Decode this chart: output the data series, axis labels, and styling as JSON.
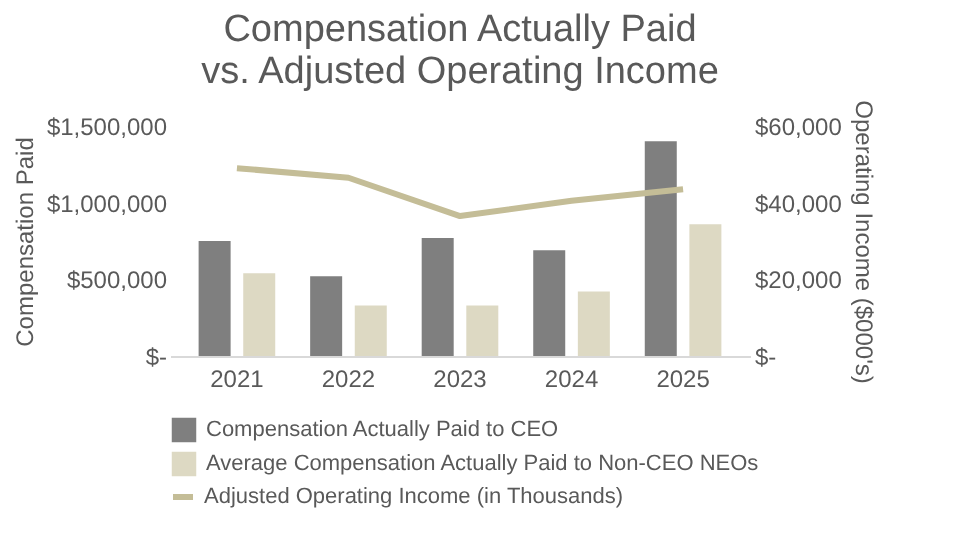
{
  "chart_data": {
    "type": "bar",
    "title": "Compensation Actually Paid vs. Adjusted Operating Income",
    "ylabel": "Compensation Paid",
    "y2label": "Operating Income ($000's)",
    "categories": [
      "2021",
      "2022",
      "2023",
      "2024",
      "2025"
    ],
    "series": [
      {
        "name": "Compensation Actually Paid to CEO",
        "color": "#7f7f7f",
        "values": [
          750000,
          520000,
          770000,
          690000,
          1400000
        ]
      },
      {
        "name": "Average Compensation Actually Paid to Non-CEO NEOs",
        "color": "#ddd9c3",
        "values": [
          540000,
          330000,
          330000,
          420000,
          860000
        ]
      },
      {
        "name": "Adjusted Operating Income (in Thousands)",
        "type": "line",
        "axis": "y2",
        "color": "#c4bd97",
        "values": [
          49000,
          46500,
          36500,
          40500,
          43500
        ]
      }
    ],
    "ylim": [
      0,
      1500000
    ],
    "yticks": [
      {
        "value": 0,
        "label": "$-"
      },
      {
        "value": 500000,
        "label": "$500,000"
      },
      {
        "value": 1000000,
        "label": "$1,000,000"
      },
      {
        "value": 1500000,
        "label": "$1,500,000"
      }
    ],
    "y2lim": [
      0,
      60000
    ],
    "y2ticks": [
      {
        "value": 0,
        "label": "$-"
      },
      {
        "value": 20000,
        "label": "$20,000"
      },
      {
        "value": 40000,
        "label": "$40,000"
      },
      {
        "value": 60000,
        "label": "$60,000"
      }
    ],
    "grid": false,
    "legend": "bottom",
    "marker": "none",
    "line_style": "solid"
  }
}
